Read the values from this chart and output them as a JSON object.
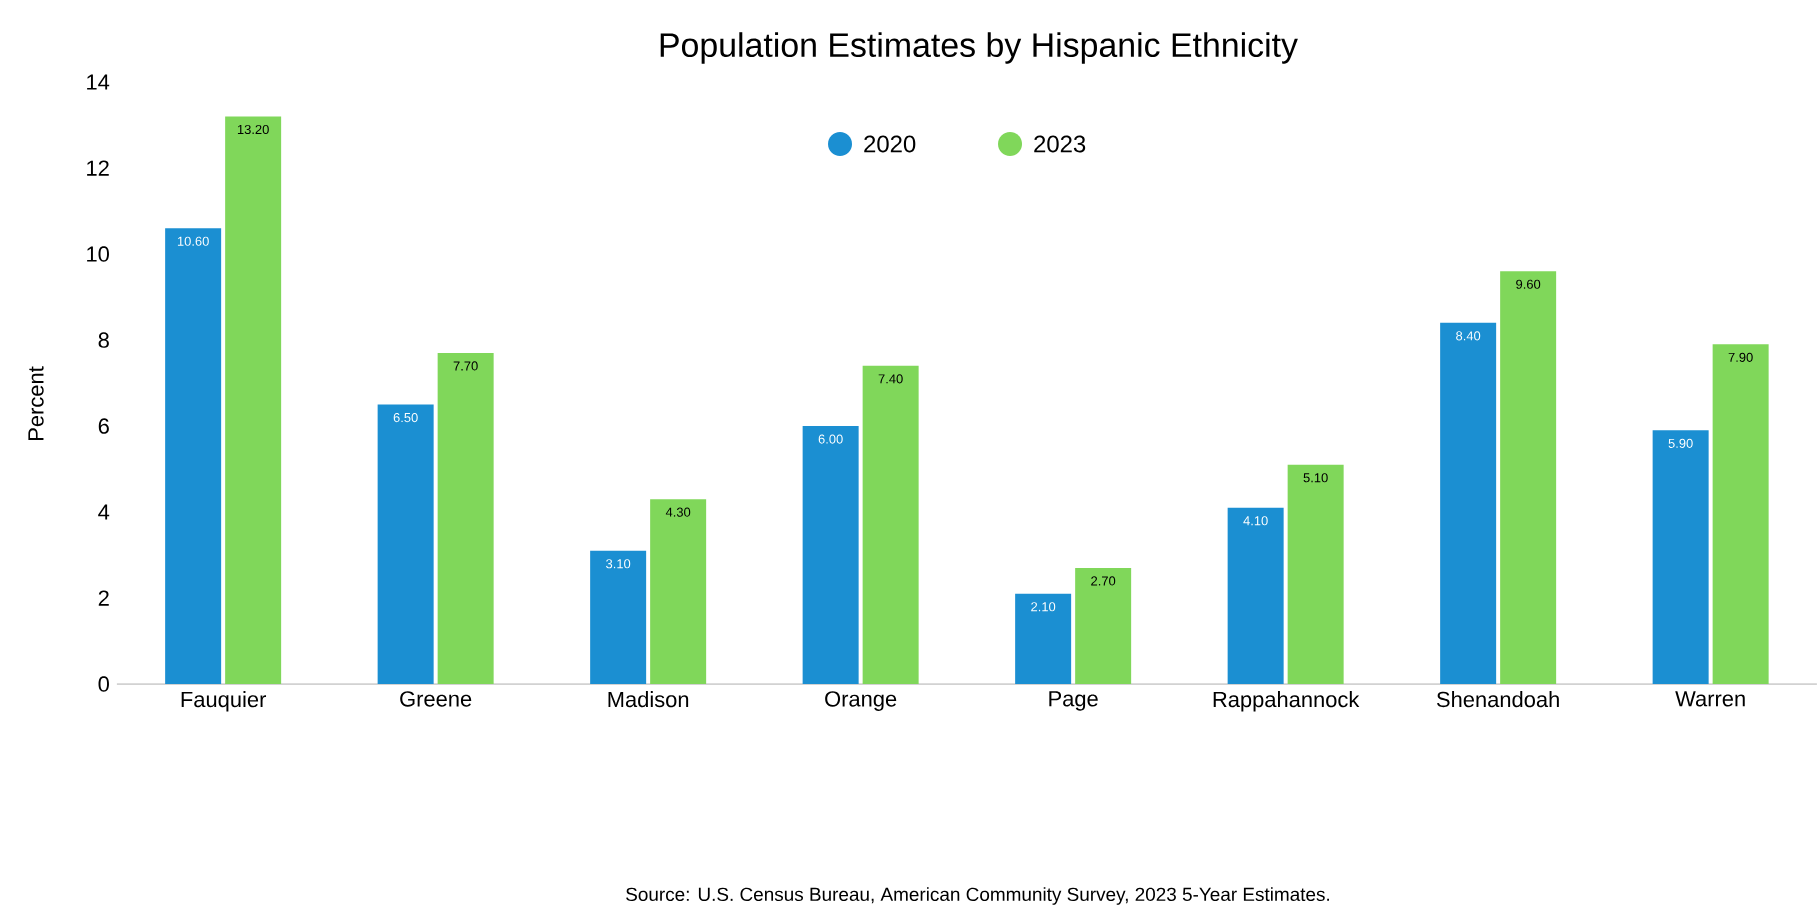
{
  "chart_data": {
    "type": "bar",
    "title": "Population Estimates by Hispanic Ethnicity",
    "ylabel": "Percent",
    "categories": [
      "Fauquier",
      "Greene",
      "Madison",
      "Orange",
      "Page",
      "Rappahannock",
      "Shenandoah",
      "Warren"
    ],
    "series": [
      {
        "name": "2020",
        "color": "#1b8fd2",
        "values": [
          10.6,
          6.5,
          3.1,
          6.0,
          2.1,
          4.1,
          8.4,
          5.9
        ],
        "value_labels": [
          "10.60",
          "6.50",
          "3.10",
          "6.00",
          "2.10",
          "4.10",
          "8.40",
          "5.90"
        ]
      },
      {
        "name": "2023",
        "color": "#80d75a",
        "values": [
          13.2,
          7.7,
          4.3,
          7.4,
          2.7,
          5.1,
          9.6,
          7.9
        ],
        "value_labels": [
          "13.20",
          "7.70",
          "4.30",
          "7.40",
          "2.70",
          "5.10",
          "9.60",
          "7.90"
        ]
      }
    ],
    "ylim": [
      0,
      14
    ],
    "yticks": [
      0,
      2,
      4,
      6,
      8,
      10,
      12,
      14
    ],
    "legend": "top",
    "annotations": [
      "Source: U.S. Census Bureau, American Community Survey, 2023 5-Year Estimates."
    ]
  }
}
